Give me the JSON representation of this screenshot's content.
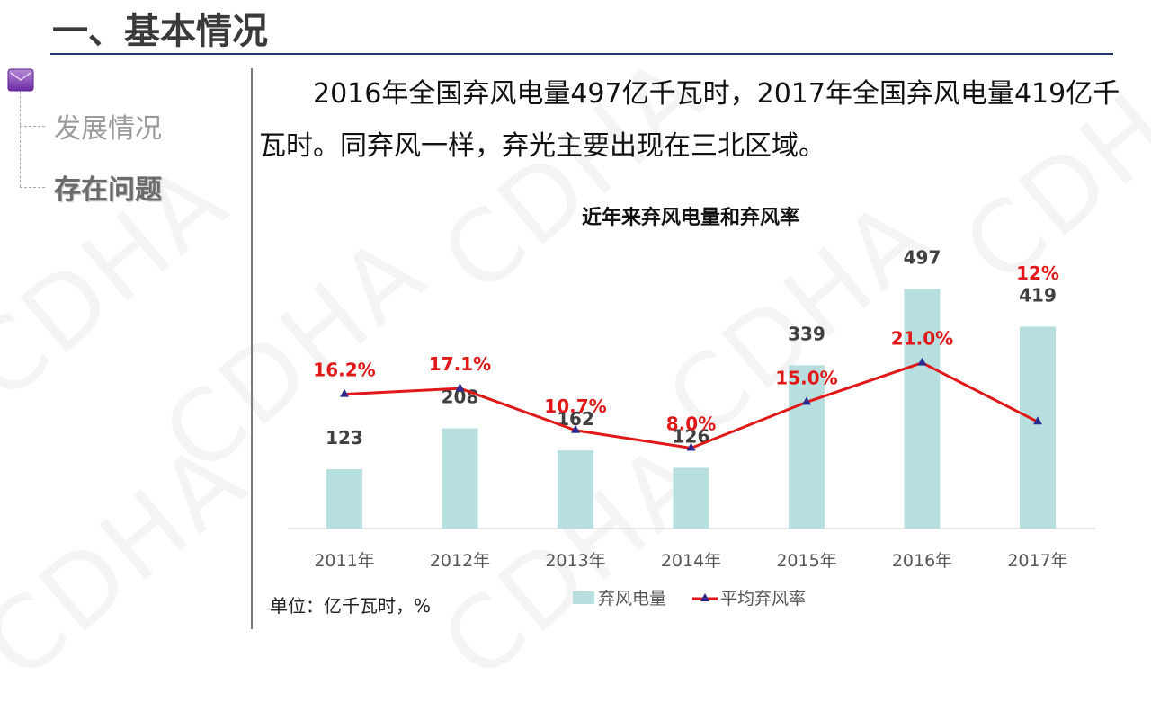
{
  "header": {
    "title": "一、基本情况"
  },
  "sidebar": {
    "items": [
      {
        "label": "发展情况",
        "active": false
      },
      {
        "label": "存在问题",
        "active": true
      }
    ]
  },
  "watermark": "CDHA",
  "paragraph": "　　2016年全国弃风电量497亿千瓦时，2017年全国弃风电量419亿千瓦时。同弃风一样，弃光主要出现在三北区域。",
  "unit_note": "单位：亿千瓦时，%",
  "colors": {
    "bar": "#b8dfe0",
    "line": "#e01818",
    "marker": "#2a2d8f",
    "rule": "#25356e"
  },
  "chart_data": {
    "type": "bar",
    "title": "近年来弃风电量和弃风率",
    "categories": [
      "2011年",
      "2012年",
      "2013年",
      "2014年",
      "2015年",
      "2016年",
      "2017年"
    ],
    "series": [
      {
        "name": "弃风电量",
        "type": "bar",
        "values": [
          123,
          208,
          162,
          126,
          339,
          497,
          419
        ],
        "labels": [
          "123",
          "208",
          "162",
          "126",
          "339",
          "497",
          "419"
        ]
      },
      {
        "name": "平均弃风率",
        "type": "line",
        "values": [
          16.2,
          17.1,
          10.7,
          8.0,
          15.0,
          21.0,
          12.0
        ],
        "labels": [
          "16.2%",
          "17.1%",
          "10.7%",
          "8.0%",
          "15.0%",
          "21.0%",
          "12%"
        ]
      }
    ],
    "legend": "bottom",
    "grid": false
  }
}
